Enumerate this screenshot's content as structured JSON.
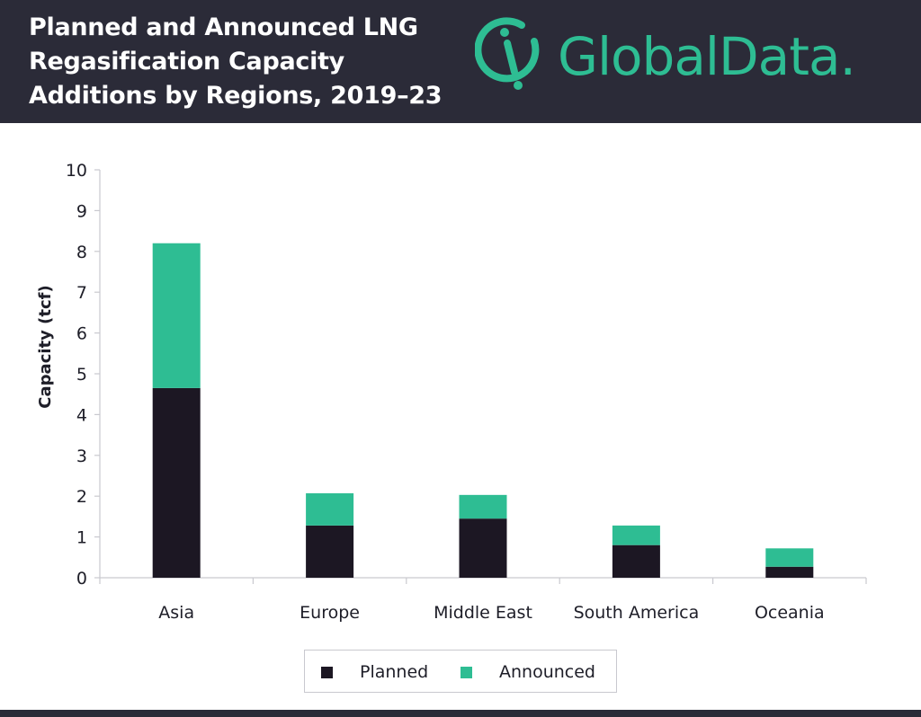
{
  "header": {
    "title_lines": [
      "Planned and Announced LNG",
      "Regasification Capacity",
      "Additions by Regions, 2019–23"
    ],
    "logo_text": "GlobalData."
  },
  "colors": {
    "header_bg": "#2b2b38",
    "planned": "#1c1723",
    "announced": "#2ebd93",
    "logo": "#2ebd93"
  },
  "chart_data": {
    "type": "bar",
    "stacked": true,
    "title": "Planned and Announced LNG Regasification Capacity Additions by Regions, 2019–23",
    "xlabel": "",
    "ylabel": "Capacity (tcf)",
    "ylim": [
      0,
      10
    ],
    "yticks": [
      0,
      1,
      2,
      3,
      4,
      5,
      6,
      7,
      8,
      9,
      10
    ],
    "categories": [
      "Asia",
      "Europe",
      "Middle East",
      "South America",
      "Oceania"
    ],
    "series": [
      {
        "name": "Planned",
        "values": [
          4.65,
          1.28,
          1.45,
          0.8,
          0.27
        ]
      },
      {
        "name": "Announced",
        "values": [
          3.55,
          0.79,
          0.58,
          0.48,
          0.45
        ]
      }
    ],
    "grid": false,
    "legend_position": "bottom"
  }
}
